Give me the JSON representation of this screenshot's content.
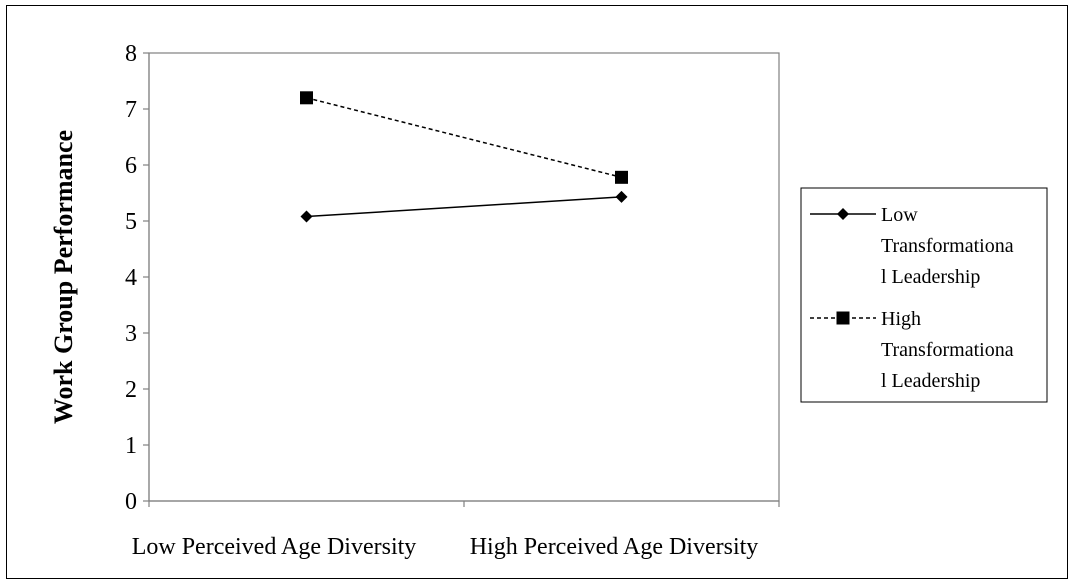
{
  "chart_data": {
    "type": "line",
    "title": "",
    "xlabel": "",
    "ylabel": "Work Group Performance",
    "categories": [
      "Low Perceived Age Diversity",
      "High Perceived Age Diversity"
    ],
    "ylim": [
      0,
      8
    ],
    "yticks": [
      "0",
      "1",
      "2",
      "3",
      "4",
      "5",
      "6",
      "7",
      "8"
    ],
    "grid": false,
    "legend_position": "right",
    "series": [
      {
        "name": "Low Transformational Leadership",
        "legend_lines": [
          "Low",
          "Transformationa",
          "l Leadership"
        ],
        "values": [
          5.08,
          5.43
        ],
        "line_style": "solid",
        "marker": "diamond",
        "color": "#000000"
      },
      {
        "name": "High Transformational Leadership",
        "legend_lines": [
          "High",
          "Transformationa",
          "l Leadership"
        ],
        "values": [
          7.2,
          5.78
        ],
        "line_style": "dashed",
        "marker": "square",
        "color": "#000000"
      }
    ]
  }
}
